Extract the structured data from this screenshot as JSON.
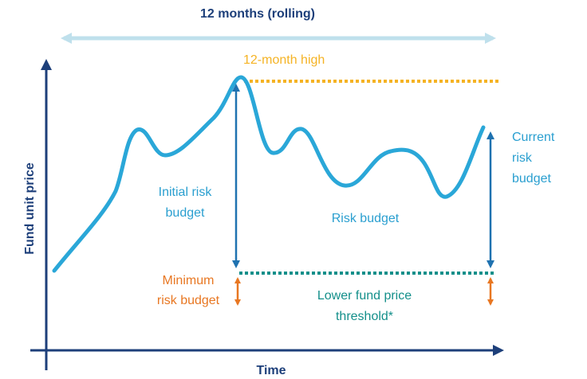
{
  "title": "12 months (rolling)",
  "high_label": "12-month high",
  "y_axis_label": "Fund unit price",
  "x_axis_label": "Time",
  "initial_risk_budget": [
    "Initial risk",
    "budget"
  ],
  "risk_budget": "Risk budget",
  "current_risk_budget": [
    "Current",
    "risk",
    "budget"
  ],
  "minimum_risk_budget": [
    "Minimum",
    "risk budget"
  ],
  "threshold_label": [
    "Lower fund price",
    "threshold*"
  ]
}
